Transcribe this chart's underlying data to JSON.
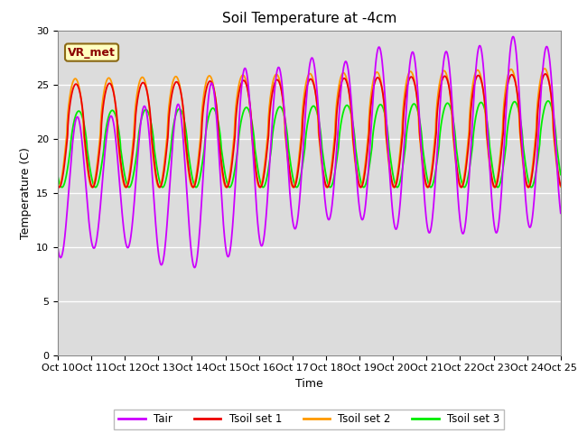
{
  "title": "Soil Temperature at -4cm",
  "xlabel": "Time",
  "ylabel": "Temperature (C)",
  "ylim": [
    0,
    30
  ],
  "xlim": [
    0,
    360
  ],
  "bg_color": "#dcdcdc",
  "fig_color": "#ffffff",
  "x_tick_labels": [
    "Oct 10",
    "Oct 11",
    "Oct 12",
    "Oct 13",
    "Oct 14",
    "Oct 15",
    "Oct 16",
    "Oct 17",
    "Oct 18",
    "Oct 19",
    "Oct 20",
    "Oct 21",
    "Oct 22",
    "Oct 23",
    "Oct 24",
    "Oct 25"
  ],
  "x_tick_positions": [
    0,
    24,
    48,
    72,
    96,
    120,
    144,
    168,
    192,
    216,
    240,
    264,
    288,
    312,
    336,
    360
  ],
  "grid_color": "#ffffff",
  "line_colors": {
    "Tair": "#cc00ff",
    "Tsoil1": "#ee0000",
    "Tsoil2": "#ff9900",
    "Tsoil3": "#00ee00"
  },
  "legend_label": "VR_met",
  "legend_entries": [
    "Tair",
    "Tsoil set 1",
    "Tsoil set 2",
    "Tsoil set 3"
  ]
}
